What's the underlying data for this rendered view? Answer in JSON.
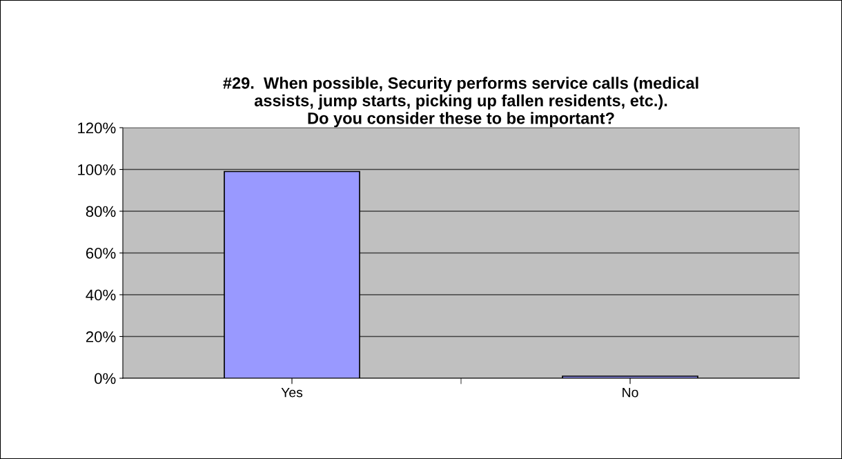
{
  "chart_data": {
    "type": "bar",
    "title": "#29.  When possible, Security performs service calls (medical\nassists, jump starts, picking up fallen residents, etc.).\nDo you consider these to be important?",
    "categories": [
      "Yes",
      "No"
    ],
    "values": [
      0.99,
      0.01
    ],
    "color": "#9999ff",
    "ylim": [
      0,
      1.2
    ],
    "yticks": [
      {
        "value": 0,
        "label": "0%"
      },
      {
        "value": 0.2,
        "label": "20%"
      },
      {
        "value": 0.4,
        "label": "40%"
      },
      {
        "value": 0.6,
        "label": "60%"
      },
      {
        "value": 0.8,
        "label": "80%"
      },
      {
        "value": 1.0,
        "label": "100%"
      },
      {
        "value": 1.2,
        "label": "120%"
      }
    ],
    "grid": "y",
    "legend": false
  }
}
